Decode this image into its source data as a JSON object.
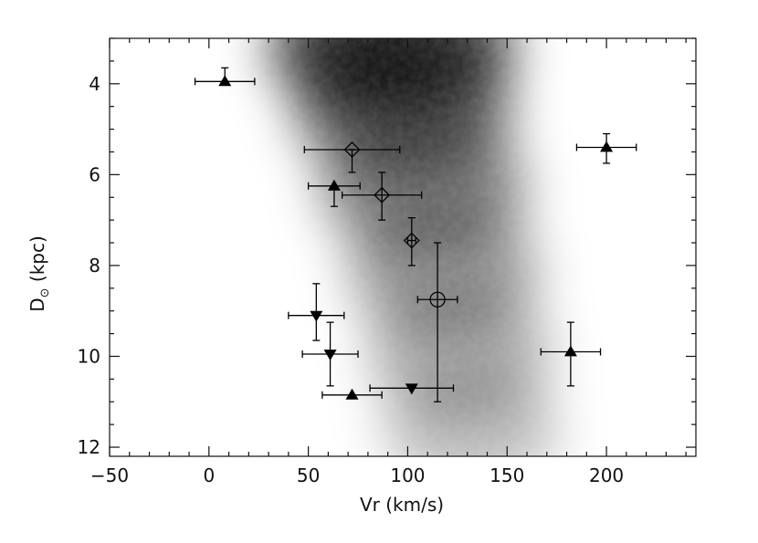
{
  "chart_data": {
    "type": "scatter",
    "title": "",
    "xlabel": "Vr (km/s)",
    "ylabel_main": "D",
    "ylabel_sub": "⊙",
    "ylabel_unit": " (kpc)",
    "xlim": [
      -50,
      245
    ],
    "ylim": [
      12.2,
      3.0
    ],
    "y_inverted": true,
    "x_major_ticks": [
      -50,
      0,
      50,
      100,
      150,
      200
    ],
    "x_tick_labels": [
      "−50",
      "0",
      "50",
      "100",
      "150",
      "200"
    ],
    "y_major_ticks": [
      4,
      6,
      8,
      10,
      12
    ],
    "y_tick_labels": [
      "4",
      "6",
      "8",
      "10",
      "12"
    ],
    "background": "grayscale density map (darker = higher density), band running from upper-center toward lower-right",
    "series": [
      {
        "marker": "triangle-up-filled",
        "points": [
          {
            "x": 8,
            "y": 3.95,
            "xerr": 15,
            "yerr_lo": 0.3,
            "yerr_hi": 0.0
          },
          {
            "x": 200,
            "y": 5.4,
            "xerr": 15,
            "yerr_lo": 0.3,
            "yerr_hi": 0.35
          },
          {
            "x": 63,
            "y": 6.25,
            "xerr": 13,
            "yerr_lo": 0.0,
            "yerr_hi": 0.45
          },
          {
            "x": 182,
            "y": 9.9,
            "xerr": 15,
            "yerr_lo": 0.65,
            "yerr_hi": 0.75
          },
          {
            "x": 72,
            "y": 10.85,
            "xerr": 15,
            "yerr_lo": 0.0,
            "yerr_hi": 0.0
          }
        ]
      },
      {
        "marker": "diamond-open",
        "points": [
          {
            "x": 72,
            "y": 5.45,
            "xerr": 24,
            "yerr_lo": 0.0,
            "yerr_hi": 0.5
          },
          {
            "x": 87,
            "y": 6.45,
            "xerr": 20,
            "yerr_lo": 0.5,
            "yerr_hi": 0.55
          },
          {
            "x": 102,
            "y": 7.45,
            "xerr": 2,
            "yerr_lo": 0.5,
            "yerr_hi": 0.55
          }
        ]
      },
      {
        "marker": "circle-open",
        "points": [
          {
            "x": 115,
            "y": 8.75,
            "xerr": 10,
            "yerr_lo": 1.25,
            "yerr_hi": 2.25
          }
        ]
      },
      {
        "marker": "triangle-down-filled",
        "points": [
          {
            "x": 54,
            "y": 9.1,
            "xerr": 14,
            "yerr_lo": 0.7,
            "yerr_hi": 0.55
          },
          {
            "x": 61,
            "y": 9.95,
            "xerr": 14,
            "yerr_lo": 0.7,
            "yerr_hi": 0.7
          },
          {
            "x": 102,
            "y": 10.7,
            "xerr": 21,
            "yerr_lo": 0.0,
            "yerr_hi": 0.0
          }
        ]
      }
    ]
  }
}
